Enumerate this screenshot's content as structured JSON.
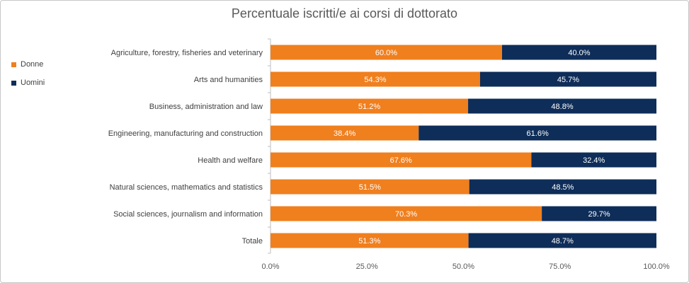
{
  "chart_data": {
    "type": "bar",
    "orientation": "horizontal",
    "stacked": true,
    "title": "Percentuale iscritti/e ai corsi di dottorato",
    "categories": [
      "Agriculture, forestry, fisheries and veterinary",
      "Arts and humanities",
      "Business, administration and law",
      "Engineering, manufacturing and construction",
      "Health and welfare",
      "Natural sciences, mathematics and statistics",
      "Social sciences, journalism and information",
      "Totale"
    ],
    "series": [
      {
        "name": "Donne",
        "color": "#F07F1E",
        "values": [
          60.0,
          54.3,
          51.2,
          38.4,
          67.6,
          51.5,
          70.3,
          51.3
        ],
        "labels": [
          "60.0%",
          "54.3%",
          "51.2%",
          "38.4%",
          "67.6%",
          "51.5%",
          "70.3%",
          "51.3%"
        ]
      },
      {
        "name": "Uomini",
        "color": "#0E2D59",
        "values": [
          40.0,
          45.7,
          48.8,
          61.6,
          32.4,
          48.5,
          29.7,
          48.7
        ],
        "labels": [
          "40.0%",
          "45.7%",
          "48.8%",
          "61.6%",
          "32.4%",
          "48.5%",
          "29.7%",
          "48.7%"
        ]
      }
    ],
    "xlim": [
      0,
      100
    ],
    "ticks": [
      0,
      25,
      50,
      75,
      100
    ],
    "tick_labels": [
      "0.0%",
      "25.0%",
      "50.0%",
      "75.0%",
      "100.0%"
    ],
    "legend_position": "left",
    "grid": false
  }
}
